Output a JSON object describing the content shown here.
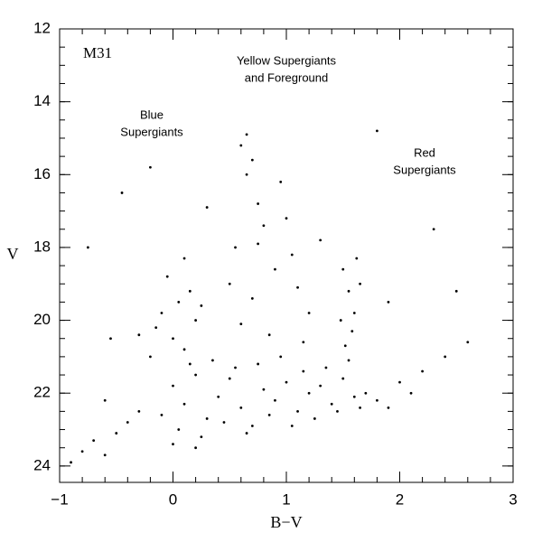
{
  "chart_data": {
    "type": "scatter",
    "x_label": "B−V",
    "y_label": "V",
    "annotations": [
      {
        "lines": [
          "M31"
        ],
        "kind": "label"
      },
      {
        "lines": [
          "Yellow Supergiants",
          "and Foreground"
        ],
        "kind": "region"
      },
      {
        "lines": [
          "Blue",
          "Supergiants"
        ],
        "kind": "region"
      },
      {
        "lines": [
          "Red",
          "Supergiants"
        ],
        "kind": "region"
      }
    ],
    "xlim": [
      -1,
      3
    ],
    "ylim": [
      12,
      24.45
    ],
    "y_inverted": true,
    "xticks": [
      {
        "value": -1,
        "label": "−1"
      },
      0,
      1,
      2,
      3
    ],
    "yticks": [
      12,
      14,
      16,
      18,
      20,
      22,
      24
    ],
    "x_minor_step": 0.2,
    "y_minor_step": 0.5,
    "color": "#000000",
    "series": [
      {
        "name": "stars",
        "x": [
          0.0,
          0.1,
          0.2,
          0.3,
          0.4,
          0.5,
          0.6,
          0.7,
          0.8,
          0.9,
          1.0,
          1.1,
          1.2,
          1.3,
          1.4,
          1.5,
          1.6,
          1.7,
          0.05,
          0.25,
          0.45,
          0.65,
          0.85,
          1.05,
          1.25,
          1.45,
          1.65,
          0.15,
          0.35,
          0.55,
          0.75,
          0.95,
          1.15,
          1.35,
          1.55,
          1.8,
          1.9,
          -0.1,
          0.0,
          0.2,
          -0.15,
          -0.1,
          0.0,
          0.05,
          0.1,
          -0.2,
          0.15,
          0.2,
          -0.05,
          0.25,
          -0.3,
          0.1,
          0.6,
          0.65,
          0.7,
          0.75,
          0.8,
          0.55,
          0.9,
          1.0,
          1.1,
          1.2,
          0.7,
          0.6,
          0.85,
          0.95,
          1.05,
          0.5,
          1.3,
          0.65,
          0.75,
          1.15,
          1.5,
          1.55,
          1.6,
          1.58,
          1.52,
          1.65,
          1.62,
          1.48,
          -0.9,
          -0.8,
          -0.7,
          -0.6,
          -0.5,
          -0.4,
          -0.3,
          -0.75,
          -0.55,
          -0.45,
          2.0,
          2.2,
          2.4,
          2.6,
          2.3,
          2.1,
          1.9,
          -0.6,
          -0.2,
          0.3,
          1.8,
          2.5
        ],
        "y": [
          21.8,
          22.3,
          21.5,
          22.7,
          22.1,
          21.6,
          22.4,
          22.9,
          21.9,
          22.2,
          21.7,
          22.5,
          22.0,
          21.8,
          22.3,
          21.6,
          22.1,
          22.0,
          23.0,
          23.2,
          22.8,
          23.1,
          22.6,
          22.9,
          22.7,
          22.5,
          22.4,
          21.2,
          21.1,
          21.3,
          21.2,
          21.0,
          21.4,
          21.3,
          21.1,
          22.2,
          22.4,
          22.6,
          23.4,
          23.5,
          20.2,
          19.8,
          20.5,
          19.5,
          20.8,
          21.0,
          19.2,
          20.0,
          18.8,
          19.6,
          20.4,
          18.3,
          15.2,
          16.0,
          15.6,
          16.8,
          17.4,
          18.0,
          18.6,
          17.2,
          19.1,
          19.8,
          19.4,
          20.1,
          20.4,
          16.2,
          18.2,
          19.0,
          17.8,
          14.9,
          17.9,
          20.6,
          18.6,
          19.2,
          19.8,
          20.3,
          20.7,
          19.0,
          18.3,
          20.0,
          23.9,
          23.6,
          23.3,
          23.7,
          23.1,
          22.8,
          22.5,
          18.0,
          20.5,
          16.5,
          21.7,
          21.4,
          21.0,
          20.6,
          17.5,
          22.0,
          19.5,
          22.2,
          15.8,
          16.9,
          14.8,
          19.2
        ]
      }
    ]
  }
}
